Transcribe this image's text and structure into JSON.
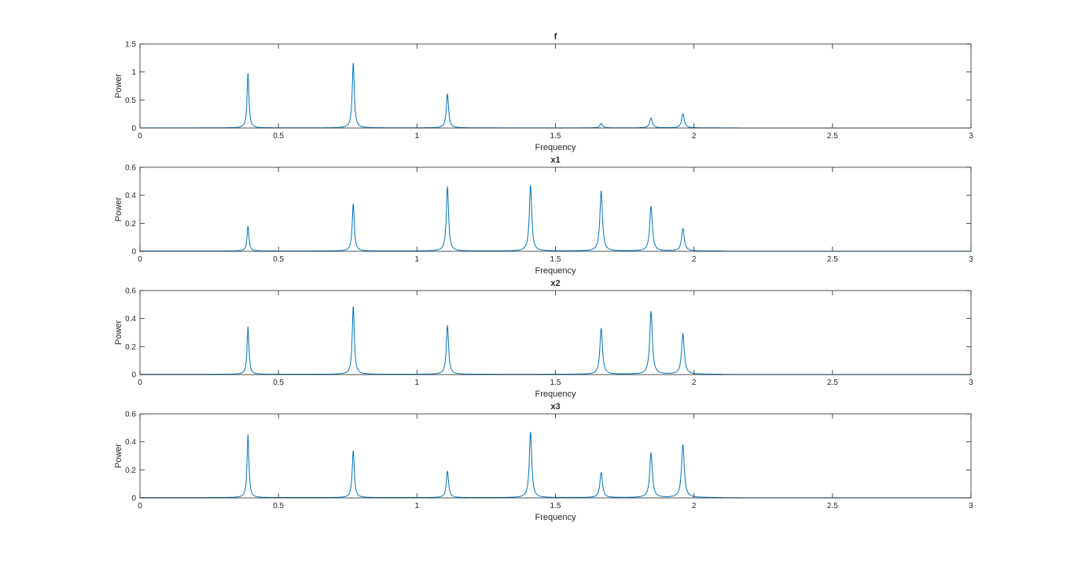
{
  "chart_data": [
    {
      "type": "line",
      "title": "f",
      "xlabel": "Frequency",
      "ylabel": "Power",
      "xlim": [
        0,
        3
      ],
      "ylim": [
        0,
        1.5
      ],
      "xticks": [
        0,
        0.5,
        1,
        1.5,
        2,
        2.5,
        3
      ],
      "xtick_labels": [
        "0",
        "0.5",
        "1",
        "1.5",
        "2",
        "2.5",
        "3"
      ],
      "yticks": [
        0,
        0.5,
        1,
        1.5
      ],
      "ytick_labels": [
        "0",
        "0.5",
        "1",
        "1.5"
      ],
      "grid": false,
      "line_color": "#0072BD",
      "peaks": [
        {
          "x": 0.39,
          "y": 0.98
        },
        {
          "x": 0.77,
          "y": 1.17
        },
        {
          "x": 1.11,
          "y": 0.61
        },
        {
          "x": 1.665,
          "y": 0.08
        },
        {
          "x": 1.845,
          "y": 0.18
        },
        {
          "x": 1.96,
          "y": 0.25
        }
      ]
    },
    {
      "type": "line",
      "title": "x1",
      "xlabel": "Frequency",
      "ylabel": "Power",
      "xlim": [
        0,
        3
      ],
      "ylim": [
        0,
        0.6
      ],
      "xticks": [
        0,
        0.5,
        1,
        1.5,
        2,
        2.5,
        3
      ],
      "xtick_labels": [
        "0",
        "0.5",
        "1",
        "1.5",
        "2",
        "2.5",
        "3"
      ],
      "yticks": [
        0,
        0.2,
        0.4,
        0.6
      ],
      "ytick_labels": [
        "0",
        "0.2",
        "0.4",
        "0.6"
      ],
      "grid": false,
      "line_color": "#0072BD",
      "peaks": [
        {
          "x": 0.39,
          "y": 0.18
        },
        {
          "x": 0.77,
          "y": 0.34
        },
        {
          "x": 1.11,
          "y": 0.46
        },
        {
          "x": 1.41,
          "y": 0.47
        },
        {
          "x": 1.665,
          "y": 0.43
        },
        {
          "x": 1.845,
          "y": 0.32
        },
        {
          "x": 1.96,
          "y": 0.16
        }
      ]
    },
    {
      "type": "line",
      "title": "x2",
      "xlabel": "Frequency",
      "ylabel": "Power",
      "xlim": [
        0,
        3
      ],
      "ylim": [
        0,
        0.6
      ],
      "xticks": [
        0,
        0.5,
        1,
        1.5,
        2,
        2.5,
        3
      ],
      "xtick_labels": [
        "0",
        "0.5",
        "1",
        "1.5",
        "2",
        "2.5",
        "3"
      ],
      "yticks": [
        0,
        0.2,
        0.4,
        0.6
      ],
      "ytick_labels": [
        "0",
        "0.2",
        "0.4",
        "0.6"
      ],
      "grid": false,
      "line_color": "#0072BD",
      "peaks": [
        {
          "x": 0.39,
          "y": 0.34
        },
        {
          "x": 0.77,
          "y": 0.49
        },
        {
          "x": 1.11,
          "y": 0.35
        },
        {
          "x": 1.665,
          "y": 0.33
        },
        {
          "x": 1.845,
          "y": 0.45
        },
        {
          "x": 1.96,
          "y": 0.29
        }
      ]
    },
    {
      "type": "line",
      "title": "x3",
      "xlabel": "Frequency",
      "ylabel": "Power",
      "xlim": [
        0,
        3
      ],
      "ylim": [
        0,
        0.6
      ],
      "xticks": [
        0,
        0.5,
        1,
        1.5,
        2,
        2.5,
        3
      ],
      "xtick_labels": [
        "0",
        "0.5",
        "1",
        "1.5",
        "2",
        "2.5",
        "3"
      ],
      "yticks": [
        0,
        0.2,
        0.4,
        0.6
      ],
      "ytick_labels": [
        "0",
        "0.2",
        "0.4",
        "0.6"
      ],
      "grid": false,
      "line_color": "#0072BD",
      "peaks": [
        {
          "x": 0.39,
          "y": 0.45
        },
        {
          "x": 0.77,
          "y": 0.34
        },
        {
          "x": 1.11,
          "y": 0.19
        },
        {
          "x": 1.41,
          "y": 0.47
        },
        {
          "x": 1.665,
          "y": 0.18
        },
        {
          "x": 1.845,
          "y": 0.32
        },
        {
          "x": 1.96,
          "y": 0.38
        }
      ]
    }
  ]
}
